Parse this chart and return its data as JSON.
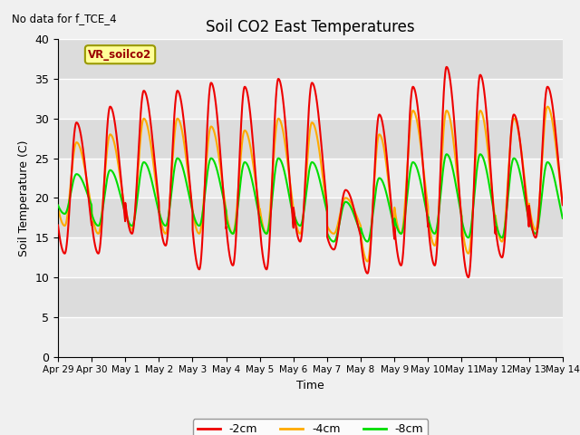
{
  "title": "Soil CO2 East Temperatures",
  "subtitle": "No data for f_TCE_4",
  "xlabel": "Time",
  "ylabel": "Soil Temperature (C)",
  "ylim": [
    0,
    40
  ],
  "yticks": [
    0,
    5,
    10,
    15,
    20,
    25,
    30,
    35,
    40
  ],
  "x_tick_labels": [
    "Apr 29",
    "Apr 30",
    "May 1",
    "May 2",
    "May 3",
    "May 4",
    "May 5",
    "May 6",
    "May 7",
    "May 8",
    "May 9",
    "May 10",
    "May 11",
    "May 12",
    "May 13",
    "May 14"
  ],
  "line_colors": {
    "-2cm": "#ee0000",
    "-4cm": "#ffaa00",
    "-8cm": "#00dd00"
  },
  "legend_label": "VR_soilco2",
  "bg_color_dark": "#dcdcdc",
  "bg_color_light": "#ebebeb",
  "grid_color": "#ffffff",
  "annotation_box_color": "#ffff99",
  "annotation_box_edge": "#999900",
  "red_peaks": [
    29.5,
    31.5,
    33.5,
    33.5,
    34.5,
    34.0,
    35.0,
    34.5,
    21.0,
    30.5,
    34.0,
    36.5,
    35.5,
    30.5,
    34.0
  ],
  "red_troughs": [
    13.0,
    13.0,
    15.5,
    14.0,
    11.0,
    11.5,
    11.0,
    14.5,
    13.5,
    10.5,
    11.5,
    11.5,
    10.0,
    12.5,
    15.0
  ],
  "ora_peaks": [
    27.0,
    28.0,
    30.0,
    30.0,
    29.0,
    28.5,
    30.0,
    29.5,
    20.0,
    28.0,
    31.0,
    31.0,
    31.0,
    30.0,
    31.5
  ],
  "ora_troughs": [
    16.5,
    15.5,
    16.0,
    15.5,
    15.5,
    15.5,
    15.5,
    15.5,
    15.5,
    12.0,
    15.5,
    14.0,
    13.0,
    14.5,
    16.0
  ],
  "grn_peaks": [
    23.0,
    23.5,
    24.5,
    25.0,
    25.0,
    24.5,
    25.0,
    24.5,
    19.5,
    22.5,
    24.5,
    25.5,
    25.5,
    25.0,
    24.5
  ],
  "grn_troughs": [
    18.0,
    16.5,
    16.5,
    16.5,
    16.5,
    15.5,
    15.5,
    16.5,
    14.5,
    14.5,
    15.5,
    15.5,
    15.0,
    15.0,
    15.5
  ]
}
